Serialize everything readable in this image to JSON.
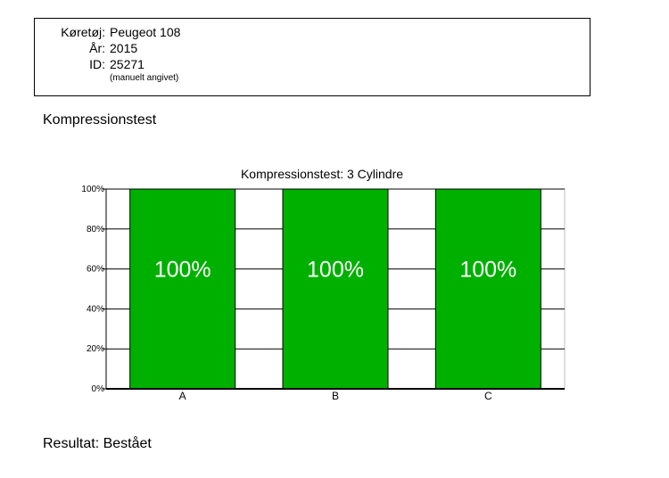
{
  "vehicle": {
    "vehicle_label": "Køretøj:",
    "vehicle_value": "Peugeot 108",
    "year_label": "År:",
    "year_value": "2015",
    "id_label": "ID:",
    "id_value": "25271",
    "note": "(manuelt angivet)"
  },
  "section_title": "Kompressionstest",
  "result": "Resultat: Bestået",
  "chart_data": {
    "type": "bar",
    "title": "Kompressionstest: 3 Cylindre",
    "categories": [
      "A",
      "B",
      "C"
    ],
    "values": [
      100,
      100,
      100
    ],
    "value_labels": [
      "100%",
      "100%",
      "100%"
    ],
    "yticks": [
      "0%",
      "20%",
      "40%",
      "60%",
      "80%",
      "100%"
    ],
    "ylim": [
      0,
      100
    ],
    "xlabel": "",
    "ylabel": "",
    "grid": true,
    "bar_color": "#00b000"
  }
}
